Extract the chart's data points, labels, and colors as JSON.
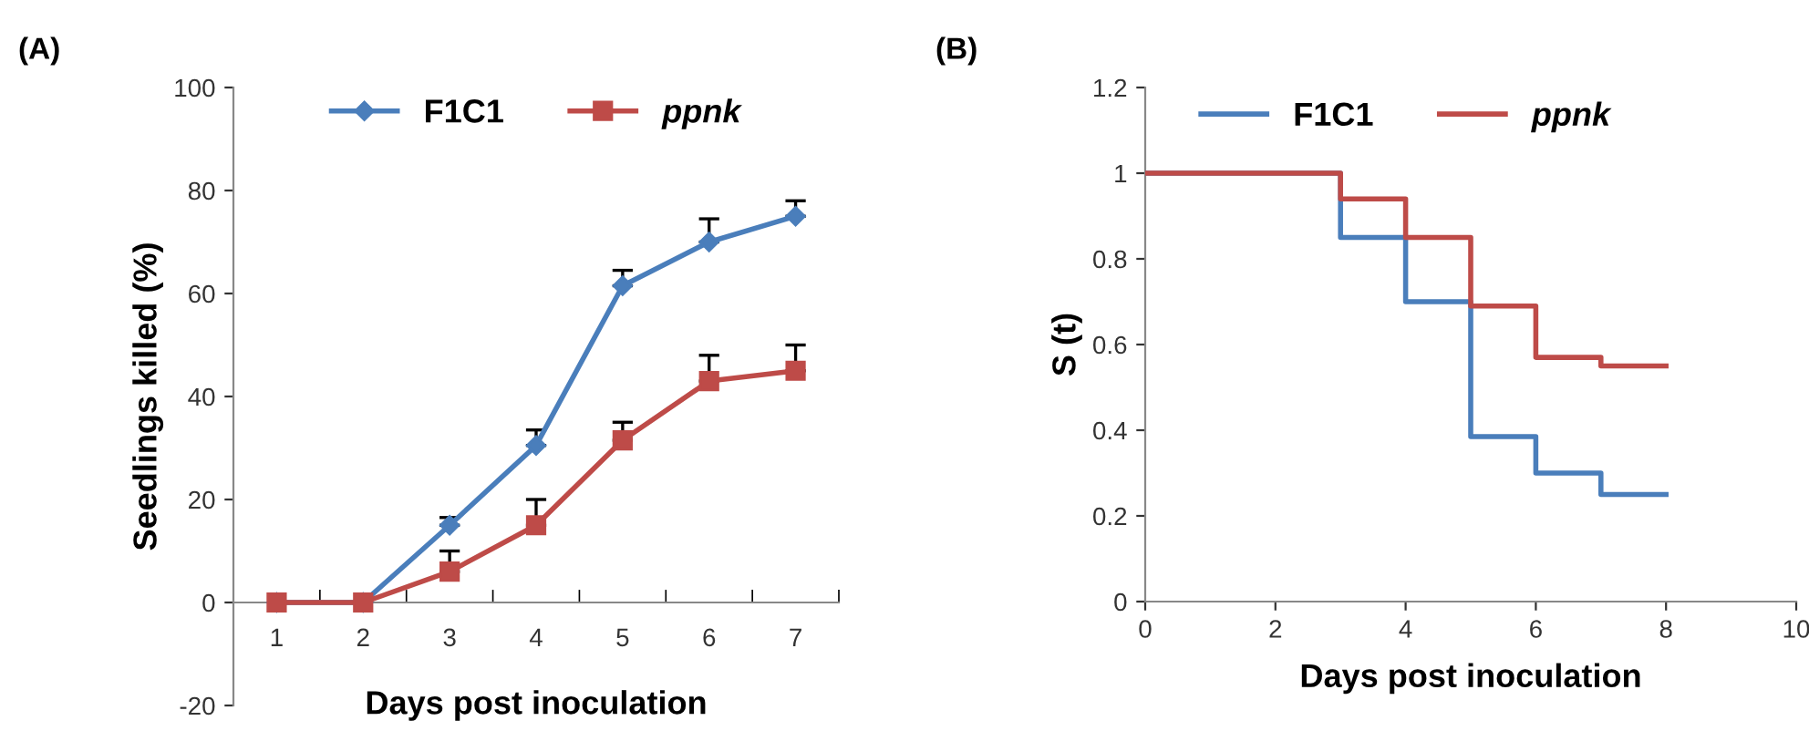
{
  "chart_data": [
    {
      "type": "line",
      "title": "(A)",
      "xlabel": "Days post inoculation",
      "ylabel": "Seedlings killed (%)",
      "categories": [
        "1",
        "2",
        "3",
        "4",
        "5",
        "6",
        "7"
      ],
      "ylim": [
        -20,
        100
      ],
      "yticks": [
        -20,
        0,
        20,
        40,
        60,
        80,
        100
      ],
      "grid": false,
      "legend": "top",
      "series": [
        {
          "name": "F1C1",
          "color": "#4a7ebb",
          "marker": "diamond",
          "values": [
            0,
            0,
            15,
            30.5,
            61.5,
            70,
            75
          ],
          "errors": [
            null,
            null,
            [
              15,
              16.5
            ],
            [
              30.5,
              33.5
            ],
            [
              61.5,
              64.5
            ],
            [
              70,
              74.5
            ],
            [
              75,
              78
            ]
          ]
        },
        {
          "name": "ppnk",
          "color": "#be4b48",
          "marker": "square",
          "values": [
            0,
            0,
            6,
            15,
            31.5,
            43,
            45
          ],
          "errors": [
            null,
            null,
            [
              6,
              10
            ],
            [
              15,
              20
            ],
            [
              31.5,
              35
            ],
            [
              43,
              48
            ],
            [
              45,
              50
            ]
          ]
        }
      ]
    },
    {
      "type": "step",
      "title": "(B)",
      "xlabel": "Days post inoculation",
      "ylabel": "S (t)",
      "xlim": [
        0,
        10
      ],
      "xticks": [
        0,
        2,
        4,
        6,
        8,
        10
      ],
      "ylim": [
        0,
        1.2
      ],
      "yticks": [
        0,
        0.2,
        0.4,
        0.6,
        0.8,
        1,
        1.2
      ],
      "grid": false,
      "legend": "top",
      "marker": "none",
      "series": [
        {
          "name": "F1C1",
          "color": "#4a7ebb",
          "x": [
            0,
            3,
            4,
            5,
            6,
            7,
            8
          ],
          "values": [
            1,
            0.85,
            0.7,
            0.385,
            0.3,
            0.25,
            0.25
          ]
        },
        {
          "name": "ppnk",
          "color": "#be4b48",
          "x": [
            0,
            3,
            4,
            5,
            6,
            7,
            8
          ],
          "values": [
            1,
            0.94,
            0.85,
            0.69,
            0.57,
            0.55,
            0.55
          ]
        }
      ]
    }
  ]
}
